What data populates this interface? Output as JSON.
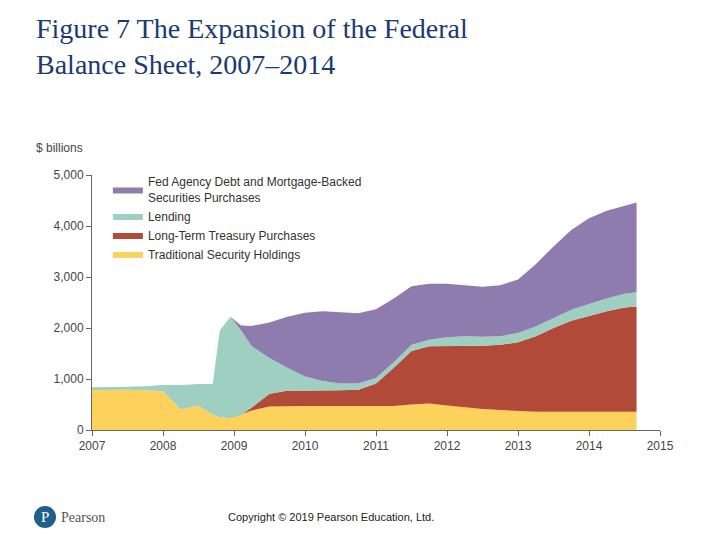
{
  "chart_data": {
    "type": "area",
    "stacked": true,
    "title": "Figure 7 The Expansion of the Federal Balance Sheet, 2007–2014",
    "ylabel": "$ billions",
    "x": [
      2007.0,
      2007.25,
      2007.5,
      2007.75,
      2008.0,
      2008.25,
      2008.5,
      2008.7,
      2008.8,
      2008.95,
      2009.1,
      2009.25,
      2009.5,
      2009.75,
      2010.0,
      2010.25,
      2010.5,
      2010.75,
      2011.0,
      2011.25,
      2011.5,
      2011.75,
      2012.0,
      2012.25,
      2012.5,
      2012.75,
      2013.0,
      2013.25,
      2013.5,
      2013.75,
      2014.0,
      2014.25,
      2014.5,
      2014.67
    ],
    "series": [
      {
        "name": "Traditional Security Holdings",
        "color": "#fdd25c",
        "values": [
          780,
          790,
          790,
          780,
          760,
          400,
          480,
          300,
          250,
          230,
          300,
          380,
          460,
          470,
          470,
          470,
          470,
          460,
          460,
          470,
          500,
          520,
          480,
          440,
          410,
          390,
          370,
          360,
          360,
          360,
          360,
          360,
          360,
          360
        ]
      },
      {
        "name": "Long-Term Treasury Purchases",
        "color": "#b24a3a",
        "values": [
          0,
          0,
          0,
          0,
          0,
          0,
          0,
          0,
          0,
          0,
          0,
          60,
          250,
          300,
          300,
          310,
          310,
          330,
          450,
          750,
          1050,
          1120,
          1160,
          1200,
          1240,
          1280,
          1350,
          1480,
          1640,
          1780,
          1880,
          1970,
          2040,
          2060
        ]
      },
      {
        "name": "Lending",
        "color": "#9fcfc0",
        "values": [
          60,
          50,
          60,
          80,
          120,
          480,
          420,
          600,
          1700,
          1990,
          1650,
          1200,
          700,
          450,
          280,
          180,
          130,
          120,
          110,
          110,
          120,
          130,
          180,
          200,
          180,
          170,
          180,
          190,
          200,
          220,
          230,
          250,
          270,
          280
        ]
      },
      {
        "name": "Fed Agency Debt and Mortgage-Backed Securities Purchases",
        "color": "#8e7caf",
        "values": [
          0,
          0,
          0,
          0,
          0,
          0,
          0,
          0,
          0,
          0,
          100,
          400,
          700,
          1000,
          1250,
          1370,
          1400,
          1380,
          1350,
          1250,
          1150,
          1100,
          1050,
          1000,
          980,
          1000,
          1050,
          1220,
          1400,
          1560,
          1680,
          1720,
          1730,
          1760
        ]
      }
    ],
    "xlim": [
      2007,
      2015
    ],
    "xticks": [
      2007,
      2008,
      2009,
      2010,
      2011,
      2012,
      2013,
      2014,
      2015
    ],
    "ylim": [
      0,
      5000
    ],
    "yticks": [
      0,
      {
        "value": 1000,
        "label": "1,000"
      },
      {
        "value": 2000,
        "label": "2,000"
      },
      {
        "value": 3000,
        "label": "3,000"
      },
      {
        "value": 4000,
        "label": "4,000"
      },
      {
        "value": 5000,
        "label": "5,000"
      }
    ],
    "grid": false,
    "legend": "top-left"
  },
  "footer": {
    "logo": "P",
    "brand": "Pearson",
    "copyright": "Copyright © 2019 Pearson Education, Ltd."
  }
}
